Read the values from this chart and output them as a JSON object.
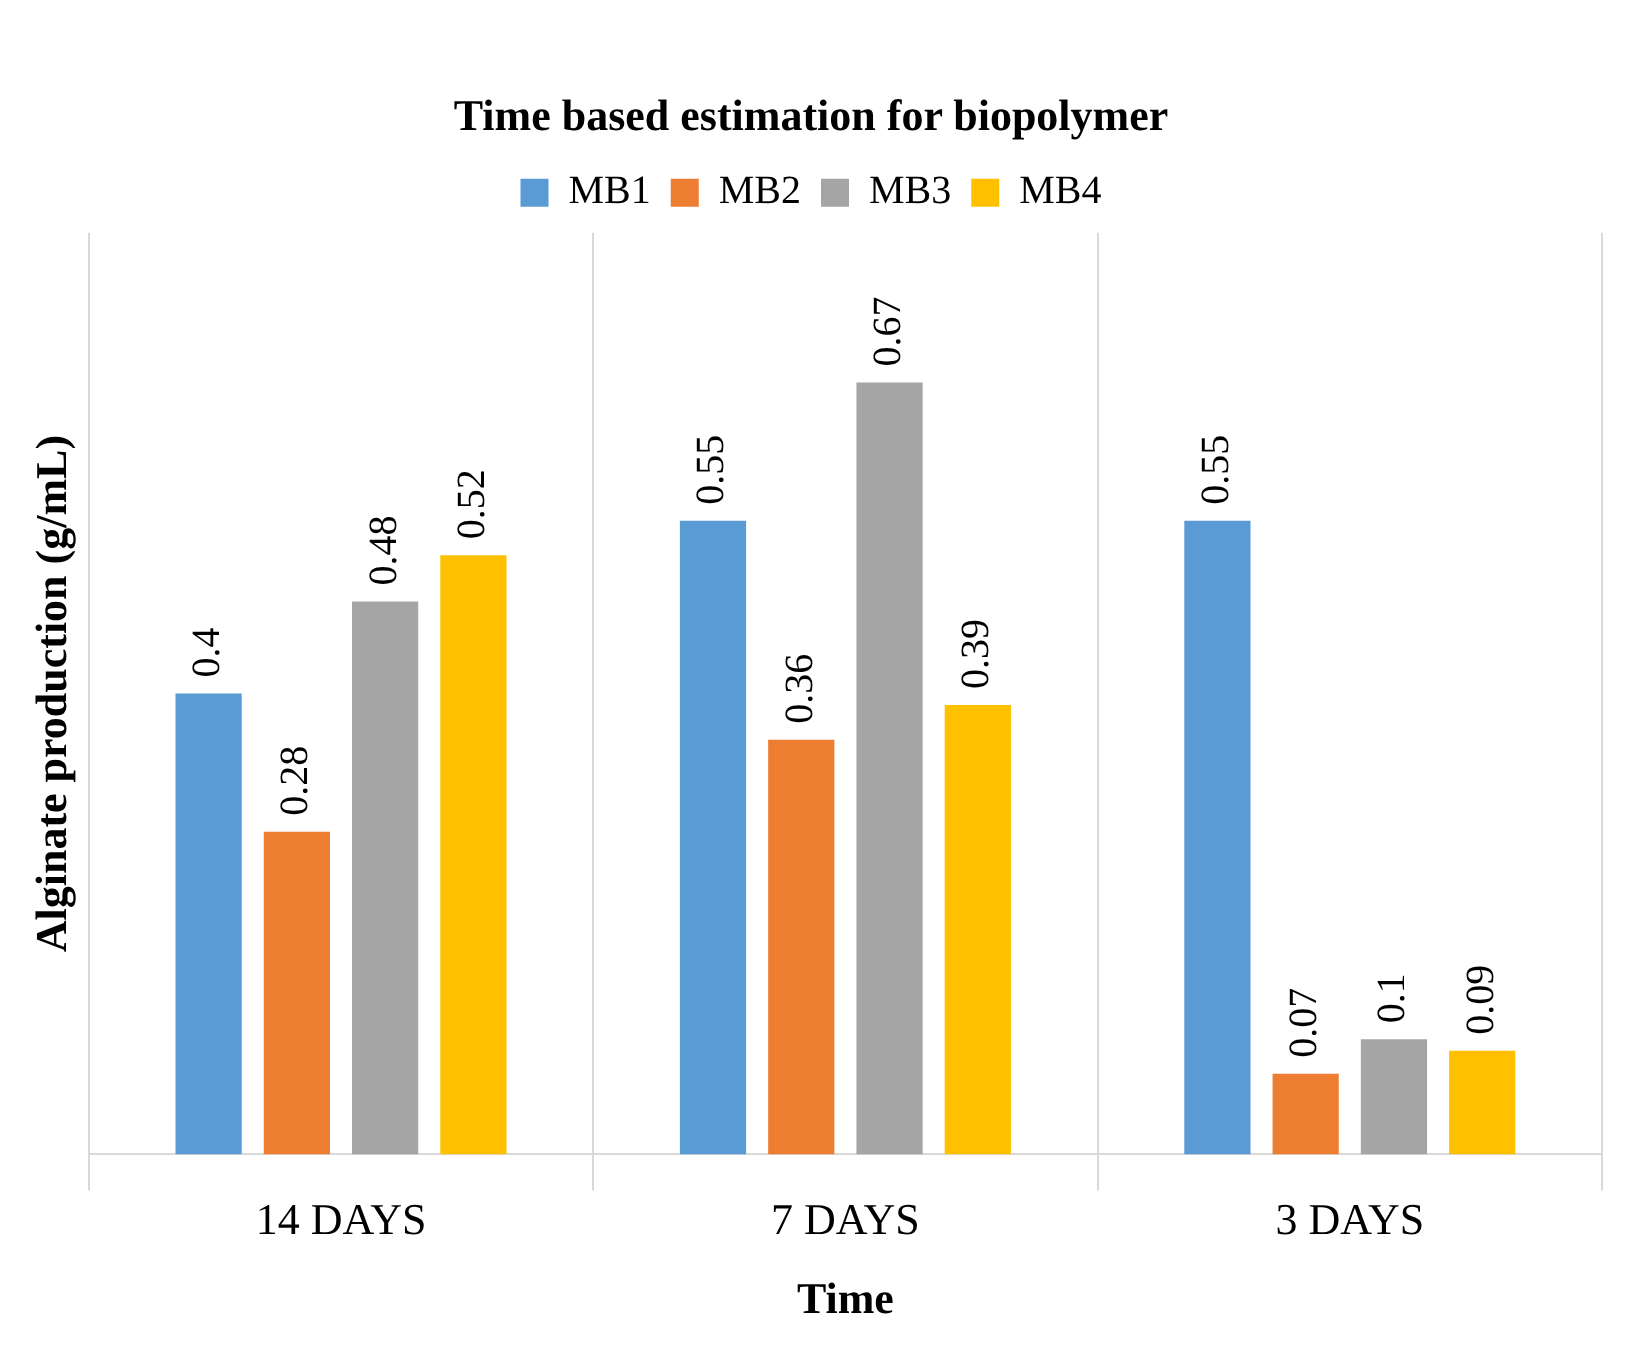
{
  "chart_data": {
    "type": "bar",
    "title": "Time based estimation for biopolymer",
    "xlabel": "Time",
    "ylabel": "Alginate production (g/mL)",
    "categories": [
      "14 DAYS",
      "7 DAYS",
      "3 DAYS"
    ],
    "series": [
      {
        "name": "MB1",
        "color": "#5b9bd5",
        "values": [
          0.4,
          0.55,
          0.55
        ]
      },
      {
        "name": "MB2",
        "color": "#ed7d31",
        "values": [
          0.28,
          0.36,
          0.07
        ]
      },
      {
        "name": "MB3",
        "color": "#a5a5a5",
        "values": [
          0.48,
          0.67,
          0.1
        ]
      },
      {
        "name": "MB4",
        "color": "#ffc000",
        "values": [
          0.52,
          0.39,
          0.09
        ]
      }
    ],
    "data_labels": true,
    "legend": "top",
    "grid": "x",
    "tick_labels": "x"
  }
}
